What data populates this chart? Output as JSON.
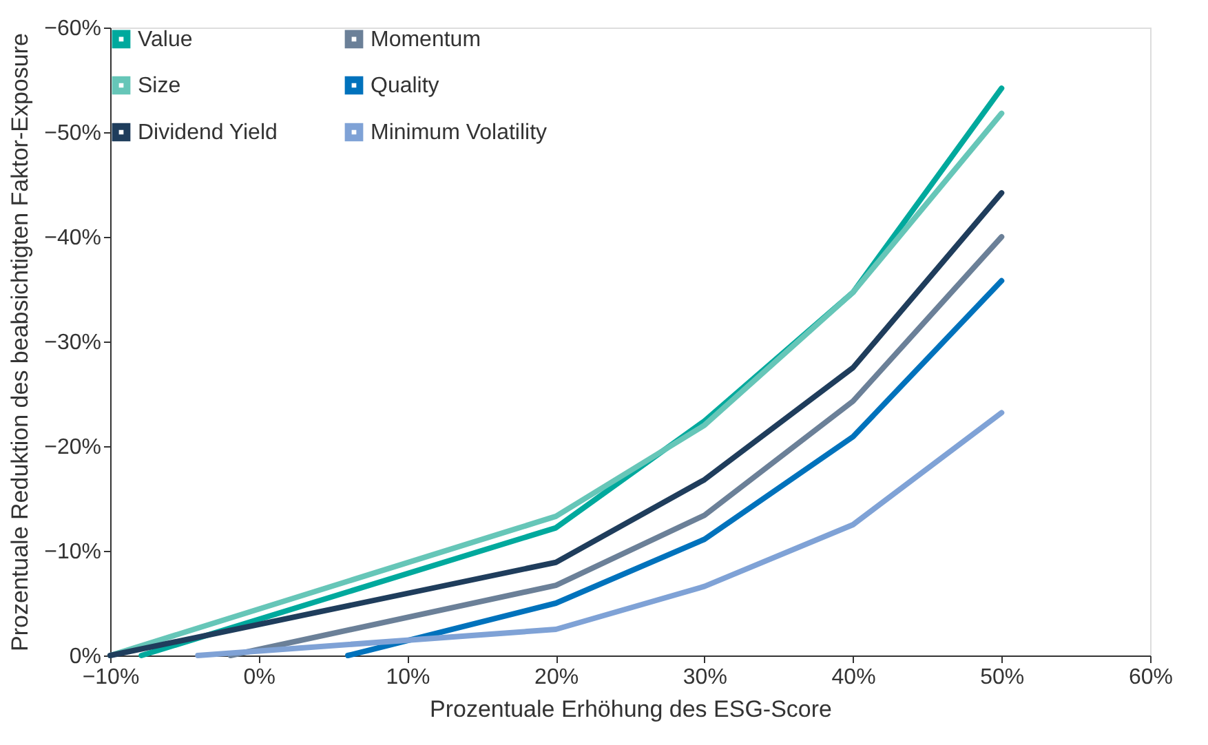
{
  "chart_data": {
    "type": "line",
    "xlabel": "Prozentuale Erhöhung des ESG-Score",
    "ylabel": "Prozentuale Reduktion des beabsichtigten Faktor-Exposure",
    "series": [
      {
        "name": "Value",
        "color": "#00a99d",
        "x": [
          -7.9,
          20,
          30,
          40,
          50
        ],
        "values": [
          0,
          -12.2,
          -22.4,
          -34.7,
          -54.2
        ]
      },
      {
        "name": "Size",
        "color": "#66c6b8",
        "x": [
          -10,
          20,
          30,
          40,
          50
        ],
        "values": [
          0,
          -13.3,
          -22.0,
          -34.7,
          -51.8
        ]
      },
      {
        "name": "Dividend Yield",
        "color": "#1f3d5c",
        "x": [
          -10,
          20,
          30,
          40,
          50
        ],
        "values": [
          0,
          -8.9,
          -16.8,
          -27.5,
          -44.2
        ]
      },
      {
        "name": "Momentum",
        "color": "#6b8098",
        "x": [
          -1.9,
          20,
          30,
          40,
          50
        ],
        "values": [
          0,
          -6.7,
          -13.4,
          -24.3,
          -40.0
        ]
      },
      {
        "name": "Quality",
        "color": "#0072bc",
        "x": [
          6,
          20,
          30,
          40,
          50
        ],
        "values": [
          0,
          -5.0,
          -11.1,
          -20.9,
          -35.8
        ]
      },
      {
        "name": "Minimum Volatility",
        "color": "#7fa2d6",
        "x": [
          -4.1,
          20,
          30,
          40,
          50
        ],
        "values": [
          0,
          -2.5,
          -6.6,
          -12.5,
          -23.2
        ]
      }
    ],
    "xlim": [
      -10,
      60
    ],
    "xticks": [
      {
        "value": -10,
        "label": "−10%"
      },
      {
        "value": 0,
        "label": "0%"
      },
      {
        "value": 10,
        "label": "10%"
      },
      {
        "value": 20,
        "label": "20%"
      },
      {
        "value": 30,
        "label": "30%"
      },
      {
        "value": 40,
        "label": "40%"
      },
      {
        "value": 50,
        "label": "50%"
      },
      {
        "value": 60,
        "label": "60%"
      }
    ],
    "ylim": [
      0,
      -60
    ],
    "yticks": [
      {
        "value": 0,
        "label": "0%"
      },
      {
        "value": -10,
        "label": "−10%"
      },
      {
        "value": -20,
        "label": "−20%"
      },
      {
        "value": -30,
        "label": "−30%"
      },
      {
        "value": -40,
        "label": "−40%"
      },
      {
        "value": -50,
        "label": "−50%"
      },
      {
        "value": -60,
        "label": "−60%"
      }
    ],
    "grid": false,
    "legend": "top left",
    "marker": "none",
    "line_style": "solid"
  }
}
